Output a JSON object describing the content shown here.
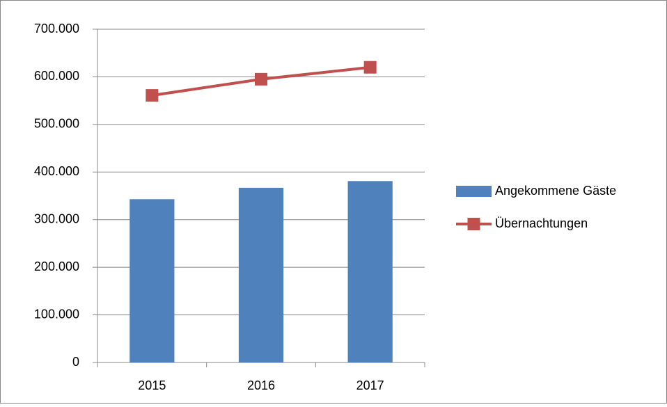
{
  "chart_data": {
    "type": "bar",
    "categories": [
      "2015",
      "2016",
      "2017"
    ],
    "series": [
      {
        "name": "Angekommene Gäste",
        "type": "bar",
        "color": "#4f81bd",
        "values": [
          343000,
          367000,
          381000
        ]
      },
      {
        "name": "Übernachtungen",
        "type": "line",
        "color": "#c0504d",
        "values": [
          561000,
          595000,
          620000
        ]
      }
    ],
    "ylim": [
      0,
      700000
    ],
    "yticks": [
      0,
      {
        "value": 100000,
        "label": "100.000"
      },
      {
        "value": 200000,
        "label": "200.000"
      },
      {
        "value": 300000,
        "label": "300.000"
      },
      {
        "value": 400000,
        "label": "400.000"
      },
      {
        "value": 500000,
        "label": "500.000"
      },
      {
        "value": 600000,
        "label": "600.000"
      },
      {
        "value": 700000,
        "label": "700.000"
      }
    ],
    "grid": true,
    "legend": "right"
  }
}
